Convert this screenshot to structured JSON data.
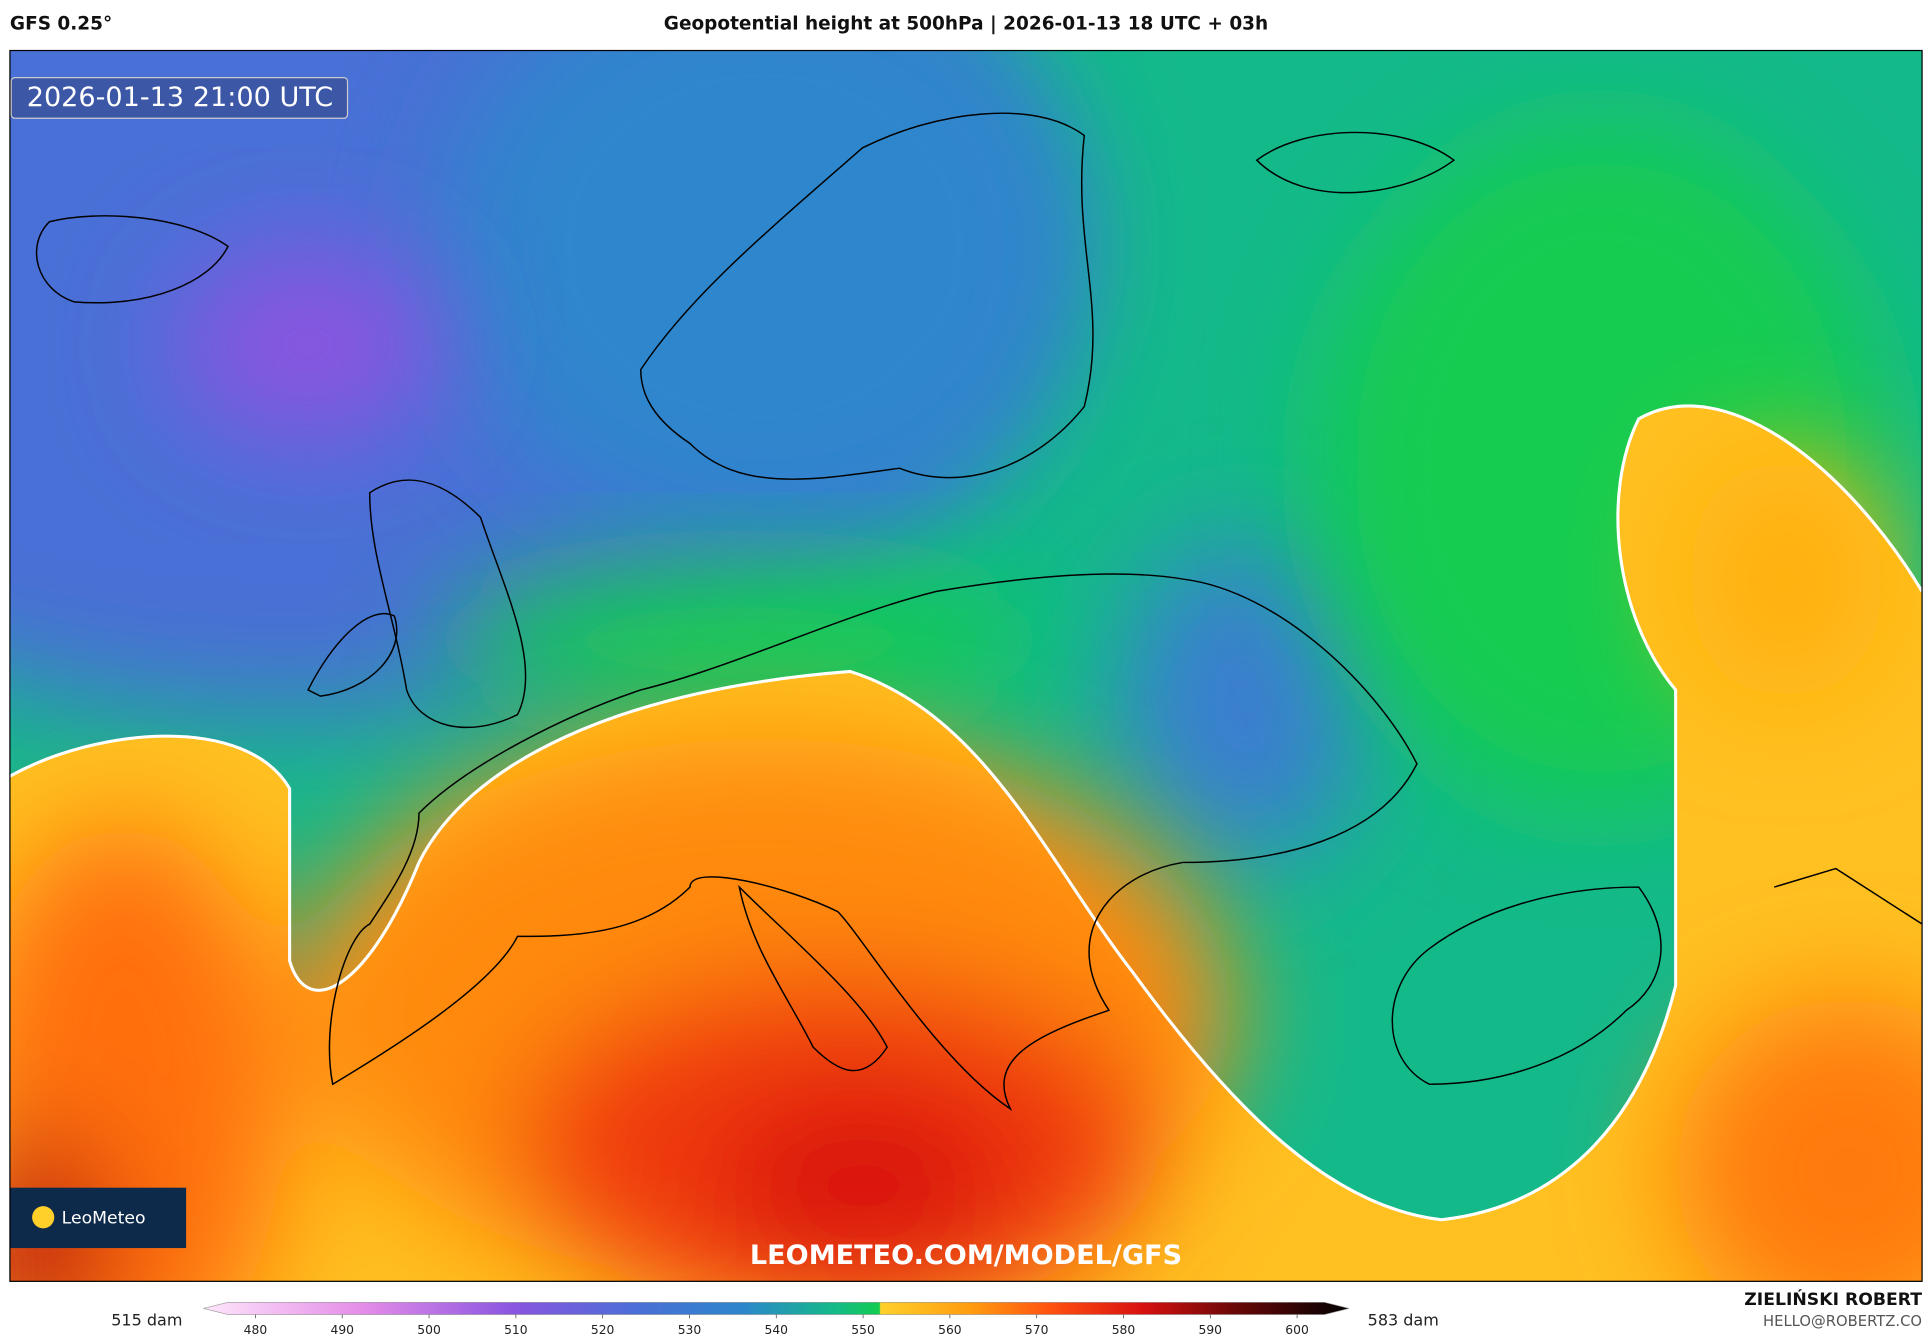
{
  "header": {
    "model": "GFS 0.25°",
    "title": "Geopotential height at 500hPa | 2026-01-13 18 UTC + 03h"
  },
  "map": {
    "timestamp": "2026-01-13 21:00 UTC",
    "logo": "LeoMeteo",
    "watermark": "LEOMETEO.COM/MODEL/GFS"
  },
  "colorbar": {
    "min_label": "515 dam",
    "max_label": "583 dam",
    "range": [
      474,
      606
    ],
    "ticks": [
      480,
      490,
      500,
      510,
      520,
      530,
      540,
      550,
      560,
      570,
      580,
      590,
      600
    ]
  },
  "credits": {
    "author": "ZIELIŃSKI ROBERT",
    "email": "HELLO@ROBERTZ.CO"
  }
}
